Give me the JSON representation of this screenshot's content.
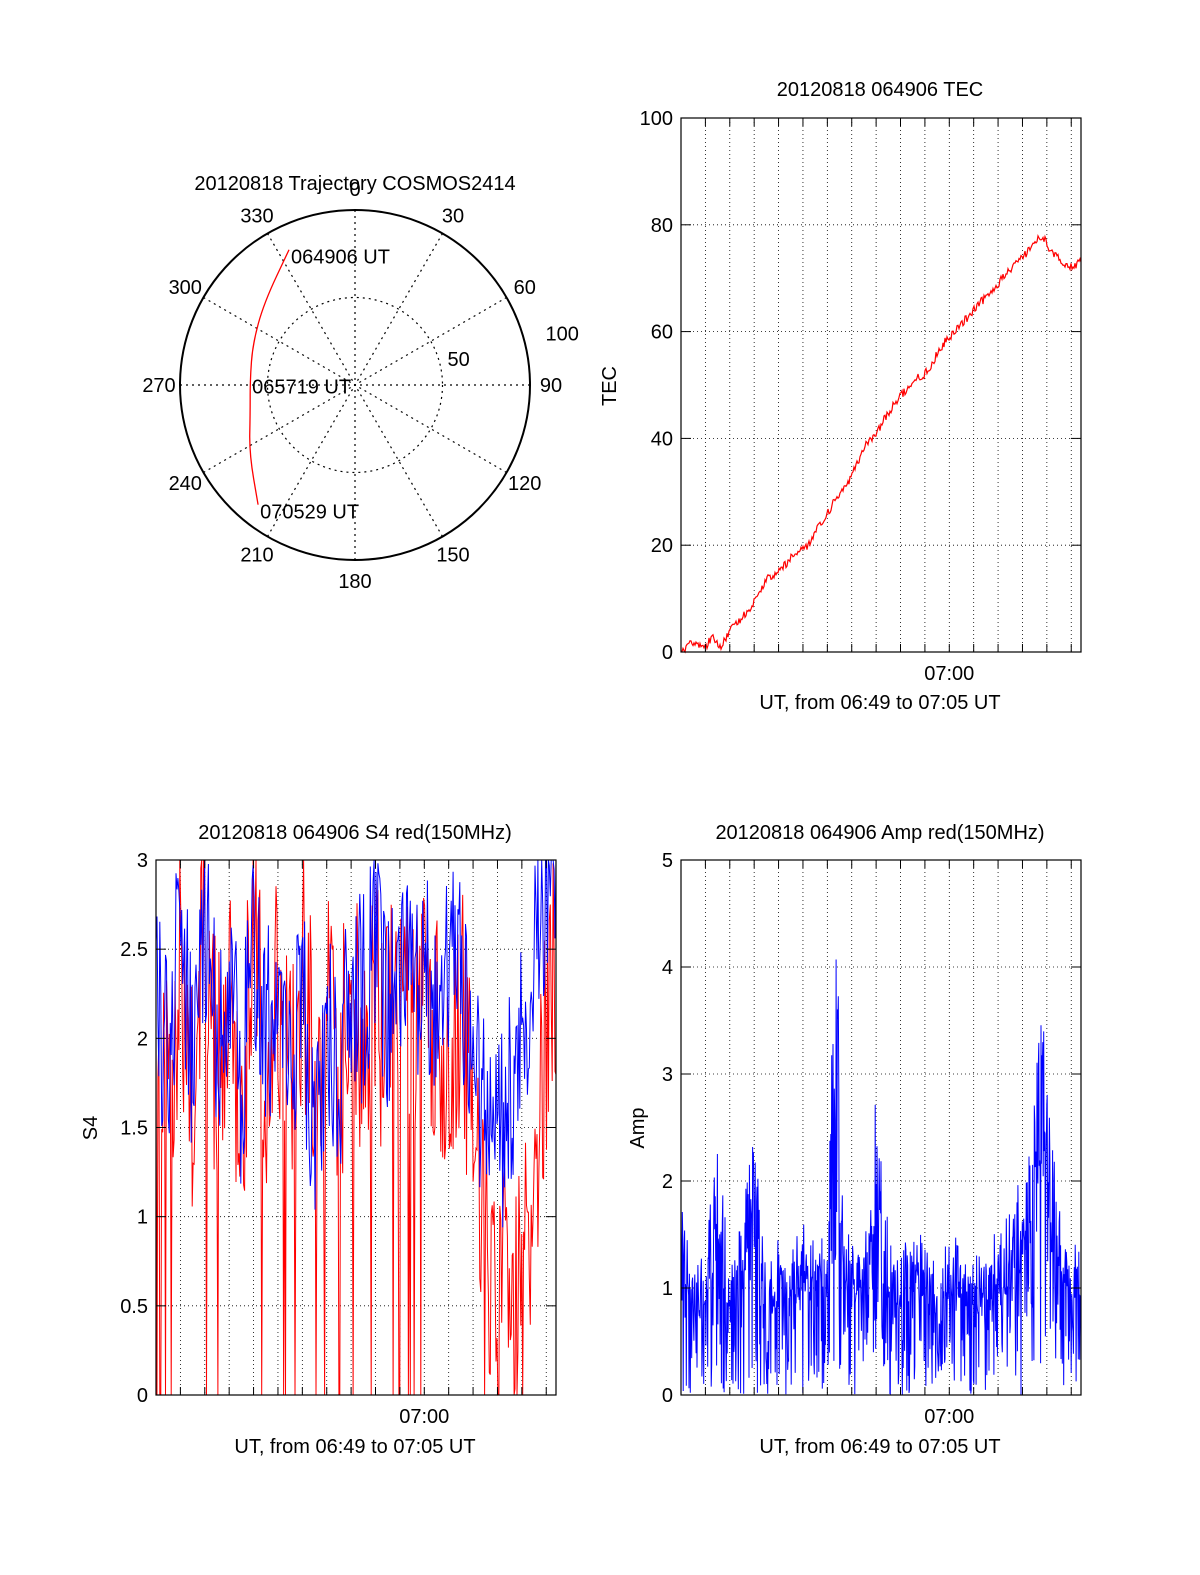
{
  "colors": {
    "red_series": "#ff0000",
    "blue_series": "#0000ff",
    "axis": "#000000",
    "grid": "#000000"
  },
  "chart_data": [
    {
      "type": "polar",
      "title": "20120818 Trajectory COSMOS2414",
      "azimuth_labels": [
        "0",
        "30",
        "60",
        "90",
        "120",
        "150",
        "180",
        "210",
        "240",
        "270",
        "300",
        "330"
      ],
      "radial_labels": [
        "50",
        "100"
      ],
      "radial_range": [
        0,
        100
      ],
      "grid": true,
      "series": [
        {
          "color": "#ff0000",
          "points": [
            {
              "az": 334,
              "r": 86
            },
            {
              "az": 312,
              "r": 70
            },
            {
              "az": 292,
              "r": 63
            },
            {
              "az": 273,
              "r": 60
            },
            {
              "az": 255,
              "r": 62
            },
            {
              "az": 237,
              "r": 72
            },
            {
              "az": 219,
              "r": 88
            }
          ]
        }
      ],
      "annotations": [
        {
          "text": "064906 UT",
          "az": 334,
          "r": 86
        },
        {
          "text": "065719 UT",
          "az": 273,
          "r": 60
        },
        {
          "text": "070529 UT",
          "az": 219,
          "r": 88
        }
      ]
    },
    {
      "type": "line",
      "title": "20120818 064906 TEC",
      "ylabel": "TEC",
      "xlabel": "UT, from 06:49 to 07:05 UT",
      "xlim": [
        0,
        16.4
      ],
      "ylim": [
        0,
        100
      ],
      "yticks": [
        "0",
        "20",
        "40",
        "60",
        "80",
        "100"
      ],
      "xtick_labels": [
        {
          "x": 11,
          "label": "07:00"
        }
      ],
      "grid": true,
      "series": [
        {
          "color": "#ff0000",
          "x": [
            0,
            0.5,
            1.0,
            1.3,
            1.6,
            2.0,
            2.4,
            2.8,
            3.2,
            3.6,
            4.0,
            4.4,
            4.8,
            5.2,
            5.6,
            6.0,
            6.4,
            6.8,
            7.2,
            7.6,
            8.0,
            8.4,
            8.8,
            9.2,
            9.6,
            10.0,
            10.4,
            10.8,
            11.2,
            11.6,
            12.0,
            12.4,
            12.8,
            13.2,
            13.6,
            14.0,
            14.4,
            14.8,
            15.2,
            15.6,
            16.0,
            16.4
          ],
          "y": [
            0,
            2,
            1,
            3,
            1,
            4,
            6,
            8,
            11,
            14,
            15,
            17,
            19,
            20,
            23,
            26,
            29,
            31,
            35,
            39,
            41,
            44,
            47,
            49,
            51,
            52,
            55,
            58,
            60,
            62,
            64,
            66,
            68,
            70,
            72,
            74,
            76,
            78,
            75,
            73,
            72,
            73
          ]
        }
      ]
    },
    {
      "type": "line",
      "title": "20120818 064906 S4 red(150MHz)",
      "ylabel": "S4",
      "xlabel": "UT, from 06:49 to 07:05 UT",
      "xlim": [
        0,
        16.4
      ],
      "ylim": [
        0,
        3
      ],
      "yticks": [
        "0",
        "0.5",
        "1",
        "1.5",
        "2",
        "2.5",
        "3"
      ],
      "xtick_labels": [
        {
          "x": 11,
          "label": "07:00"
        }
      ],
      "grid": true,
      "series": [
        {
          "color": "#ff0000",
          "x": [
            0,
            0.5,
            1.0,
            1.5,
            2.0,
            2.5,
            3.0,
            3.5,
            4.0,
            4.5,
            5.0,
            5.5,
            6.0,
            6.5,
            7.0,
            7.5,
            8.0,
            8.5,
            9.0,
            9.5,
            10.0,
            10.5,
            11.0,
            11.5,
            12.0,
            12.5,
            13.0,
            13.5,
            14.0,
            14.5,
            15.0,
            15.5,
            16.0,
            16.4
          ],
          "y": [
            2.0,
            1.6,
            2.5,
            1.5,
            2.8,
            1.7,
            2.2,
            1.6,
            2.6,
            1.8,
            2.3,
            1.7,
            2.4,
            1.9,
            2.1,
            1.8,
            2.3,
            2.0,
            2.2,
            1.9,
            2.4,
            2.0,
            2.2,
            2.1,
            2.0,
            2.2,
            1.5,
            0.8,
            0.6,
            0.9,
            0.5,
            1.2,
            2.0,
            2.5
          ]
        },
        {
          "color": "#0000ff",
          "x": [
            0,
            0.5,
            1.0,
            1.5,
            2.0,
            2.5,
            3.0,
            3.5,
            4.0,
            4.5,
            5.0,
            5.5,
            6.0,
            6.5,
            7.0,
            7.5,
            8.0,
            8.5,
            9.0,
            9.5,
            10.0,
            10.5,
            11.0,
            11.5,
            12.0,
            12.5,
            13.0,
            13.5,
            14.0,
            14.5,
            15.0,
            15.5,
            16.0,
            16.4
          ],
          "y": [
            2.2,
            1.9,
            2.6,
            1.8,
            2.7,
            2.0,
            2.4,
            1.7,
            2.5,
            2.0,
            2.2,
            1.6,
            2.3,
            1.2,
            2.0,
            1.8,
            2.4,
            2.2,
            2.6,
            2.1,
            2.5,
            2.3,
            2.4,
            2.2,
            2.3,
            2.4,
            1.9,
            1.6,
            1.4,
            1.7,
            2.0,
            2.5,
            2.9,
            2.8
          ]
        }
      ]
    },
    {
      "type": "line",
      "title": "20120818 064906 Amp red(150MHz)",
      "ylabel": "Amp",
      "xlabel": "UT, from 06:49 to 07:05 UT",
      "xlim": [
        0,
        16.4
      ],
      "ylim": [
        0,
        5
      ],
      "yticks": [
        "0",
        "1",
        "2",
        "3",
        "4",
        "5"
      ],
      "xtick_labels": [
        {
          "x": 11,
          "label": "07:00"
        }
      ],
      "grid": true,
      "series": [
        {
          "color": "#0000ff",
          "x": [
            0,
            0.5,
            1.0,
            1.5,
            2.0,
            2.5,
            3.0,
            3.5,
            4.0,
            4.5,
            5.0,
            5.5,
            6.0,
            6.2,
            6.4,
            6.6,
            7.0,
            7.5,
            8.0,
            8.5,
            9.0,
            9.5,
            10.0,
            10.5,
            11.0,
            11.5,
            12.0,
            12.5,
            13.0,
            13.5,
            14.0,
            14.4,
            14.8,
            15.2,
            15.6,
            16.0,
            16.4
          ],
          "y": [
            1.8,
            1.0,
            1.3,
            2.1,
            1.2,
            1.5,
            2.3,
            1.1,
            1.4,
            1.2,
            1.6,
            1.3,
            1.5,
            4.2,
            4.1,
            1.8,
            1.3,
            1.2,
            2.8,
            1.4,
            1.2,
            1.5,
            1.3,
            1.2,
            1.4,
            1.3,
            1.2,
            1.3,
            1.4,
            1.6,
            2.0,
            2.4,
            3.4,
            2.2,
            1.5,
            1.2,
            1.5
          ]
        }
      ]
    }
  ]
}
